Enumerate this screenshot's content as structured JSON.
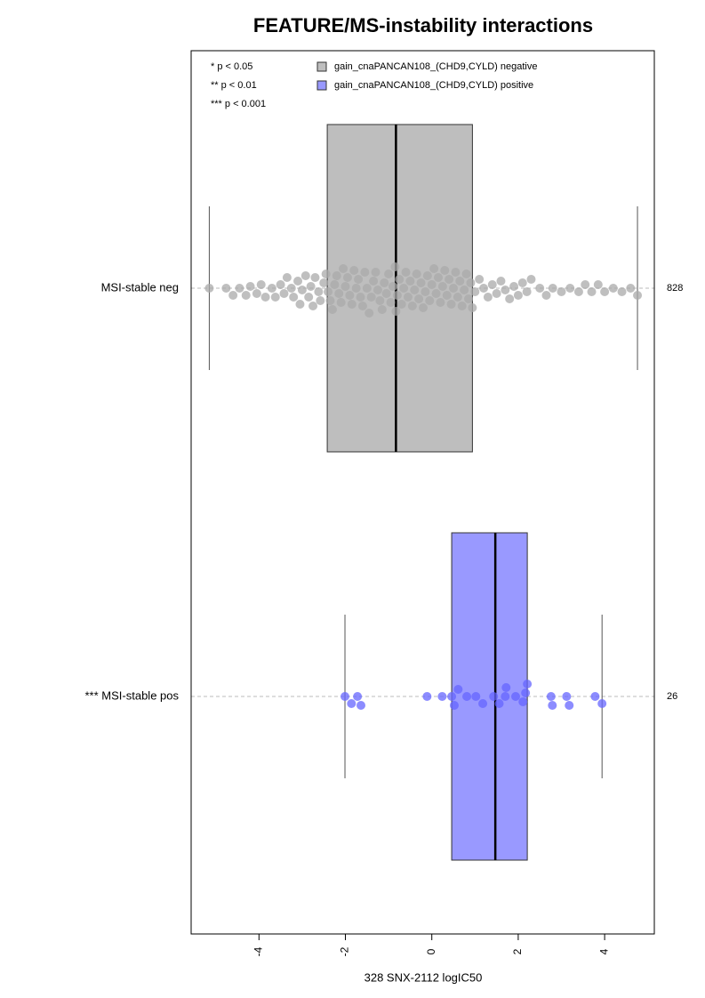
{
  "chart_data": {
    "type": "box",
    "title": "FEATURE/MS-instability interactions",
    "xlabel": "328 SNX-2112 logIC50",
    "xlim": [
      -5.57,
      5.15
    ],
    "xticks": [
      -4,
      -2,
      0,
      2,
      4
    ],
    "notes": [
      "* p < 0.05",
      "** p < 0.01",
      "*** p < 0.001"
    ],
    "series": [
      {
        "name": "gain_cnaPANCAN108_(CHD9,CYLD) negative",
        "category": "MSI-stable neg",
        "count": 828,
        "color": "#bebebe",
        "point_color": "#aaaaaa",
        "whisker_low": -5.15,
        "q1": -2.42,
        "median": -0.83,
        "q3": 0.94,
        "whisker_high": 4.76,
        "values": [
          -5.15,
          -4.76,
          -4.6,
          -4.45,
          -4.3,
          -4.2,
          -4.05,
          -3.95,
          -3.85,
          -3.7,
          -3.62,
          -3.5,
          -3.42,
          -3.35,
          -3.25,
          -3.2,
          -3.1,
          -3.05,
          -3.0,
          -2.92,
          -2.85,
          -2.8,
          -2.75,
          -2.7,
          -2.62,
          -2.58,
          -2.5,
          -2.45,
          -2.4,
          -2.35,
          -2.3,
          -2.25,
          -2.2,
          -2.15,
          -2.1,
          -2.05,
          -2.0,
          -1.95,
          -1.9,
          -1.85,
          -1.8,
          -1.75,
          -1.7,
          -1.65,
          -1.6,
          -1.55,
          -1.5,
          -1.45,
          -1.4,
          -1.35,
          -1.3,
          -1.25,
          -1.2,
          -1.15,
          -1.1,
          -1.05,
          -1.0,
          -0.95,
          -0.9,
          -0.85,
          -0.83,
          -0.8,
          -0.75,
          -0.7,
          -0.65,
          -0.6,
          -0.55,
          -0.5,
          -0.45,
          -0.4,
          -0.35,
          -0.3,
          -0.25,
          -0.2,
          -0.15,
          -0.1,
          -0.05,
          0.0,
          0.05,
          0.1,
          0.15,
          0.2,
          0.25,
          0.3,
          0.35,
          0.4,
          0.45,
          0.5,
          0.55,
          0.6,
          0.65,
          0.7,
          0.75,
          0.8,
          0.85,
          0.9,
          0.94,
          1.0,
          1.1,
          1.2,
          1.3,
          1.4,
          1.5,
          1.6,
          1.7,
          1.8,
          1.9,
          2.0,
          2.1,
          2.2,
          2.3,
          2.5,
          2.65,
          2.8,
          3.0,
          3.2,
          3.4,
          3.55,
          3.7,
          3.85,
          4.0,
          4.2,
          4.4,
          4.6,
          4.76
        ]
      },
      {
        "name": "gain_cnaPANCAN108_(CHD9,CYLD) positive",
        "category": "*** MSI-stable pos",
        "count": 26,
        "color": "#9999ff",
        "point_color": "#6666ff",
        "whisker_low": -2.01,
        "q1": 0.46,
        "median": 1.47,
        "q3": 2.21,
        "whisker_high": 3.94,
        "values": [
          -2.01,
          -1.86,
          -1.72,
          -1.64,
          -0.11,
          0.24,
          0.46,
          0.52,
          0.61,
          0.81,
          1.02,
          1.18,
          1.43,
          1.56,
          1.7,
          1.72,
          1.94,
          2.11,
          2.17,
          2.21,
          2.76,
          2.79,
          3.12,
          3.18,
          3.78,
          3.94
        ]
      }
    ]
  }
}
